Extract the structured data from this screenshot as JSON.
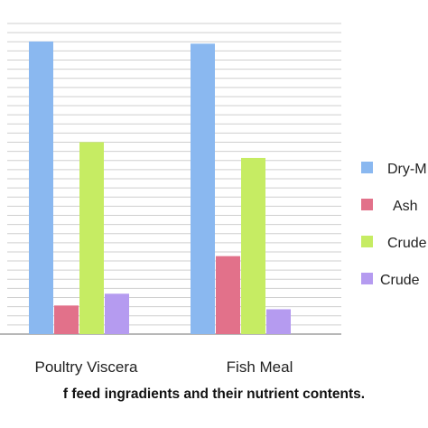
{
  "caption": "f feed ingradients and their nutrient contents.",
  "colors": {
    "grid": "#cfcfcf",
    "axis": "#8c8c8c",
    "series": [
      "#8ab8f0",
      "#e2718a",
      "#c6ec63",
      "#b59bf0"
    ]
  },
  "chart_data": {
    "type": "bar",
    "title": "",
    "xlabel": "",
    "ylabel": "",
    "ylim": [
      0,
      100
    ],
    "grid": true,
    "legend_position": "right",
    "categories": [
      "Poultry Viscera",
      "Fish Meal"
    ],
    "series": [
      {
        "name": "Dry-M",
        "values": [
          94.2,
          93.5
        ]
      },
      {
        "name": "Ash",
        "values": [
          9.2,
          25.1
        ]
      },
      {
        "name": "Crude",
        "values": [
          61.8,
          56.7
        ]
      },
      {
        "name": "Crude",
        "values": [
          13.0,
          8.0
        ]
      }
    ]
  }
}
